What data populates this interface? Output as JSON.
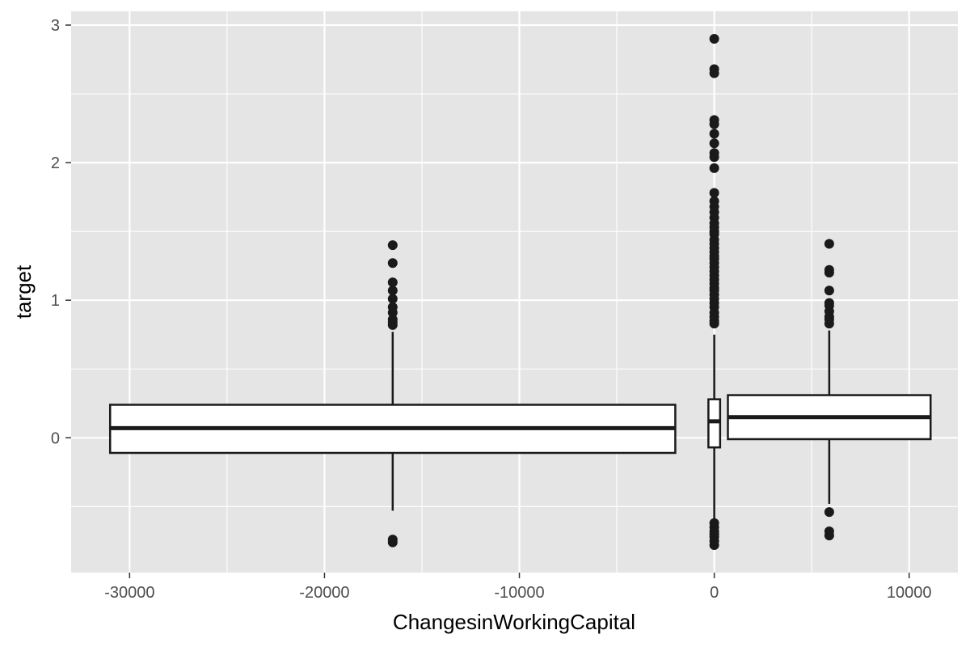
{
  "chart_data": {
    "type": "boxplot",
    "xlabel": "ChangesinWorkingCapital",
    "ylabel": "target",
    "xlim": [
      -33000,
      12500
    ],
    "ylim": [
      -0.98,
      3.1
    ],
    "x_ticks": [
      -30000,
      -20000,
      -10000,
      0,
      10000
    ],
    "x_tick_labels": [
      "-30000",
      "-20000",
      "-10000",
      "0",
      "10000"
    ],
    "y_ticks": [
      0,
      1,
      2,
      3
    ],
    "y_tick_labels": [
      "0",
      "1",
      "2",
      "3"
    ],
    "grid": true,
    "colors": {
      "panel": "#e5e5e5",
      "grid": "#ffffff",
      "box_fill": "#ffffff",
      "box_line": "#1a1a1a",
      "outlier": "#1a1a1a"
    },
    "boxes": [
      {
        "center": -16500,
        "x_min": -31000,
        "x_max": -2000,
        "q1": -0.11,
        "median": 0.07,
        "q3": 0.24,
        "whisker_low": -0.53,
        "whisker_high": 0.77,
        "outliers": [
          1.4,
          1.27,
          1.13,
          1.07,
          1.01,
          0.95,
          0.91,
          0.86,
          0.84,
          0.82,
          -0.74,
          -0.76
        ]
      },
      {
        "center": 0,
        "x_min": -300,
        "x_max": 300,
        "q1": -0.07,
        "median": 0.12,
        "q3": 0.28,
        "whisker_low": -0.6,
        "whisker_high": 0.75,
        "outliers": [
          2.9,
          2.68,
          2.65,
          2.31,
          2.28,
          2.21,
          2.14,
          2.07,
          2.04,
          1.96,
          1.78,
          1.72,
          1.68,
          1.64,
          1.6,
          1.56,
          1.53,
          1.5,
          1.48,
          1.44,
          1.41,
          1.38,
          1.35,
          1.32,
          1.3,
          1.27,
          1.24,
          1.21,
          1.18,
          1.15,
          1.12,
          1.09,
          1.07,
          1.04,
          1.01,
          0.98,
          0.95,
          0.91,
          0.88,
          0.85,
          0.83,
          -0.62,
          -0.65,
          -0.68,
          -0.7,
          -0.72,
          -0.75,
          -0.78
        ]
      },
      {
        "center": 5900,
        "x_min": 700,
        "x_max": 11100,
        "q1": -0.01,
        "median": 0.15,
        "q3": 0.31,
        "whisker_low": -0.48,
        "whisker_high": 0.78,
        "outliers": [
          1.41,
          1.22,
          1.2,
          1.07,
          0.98,
          0.96,
          0.92,
          0.88,
          0.86,
          0.83,
          -0.54,
          -0.68,
          -0.71
        ]
      }
    ]
  }
}
